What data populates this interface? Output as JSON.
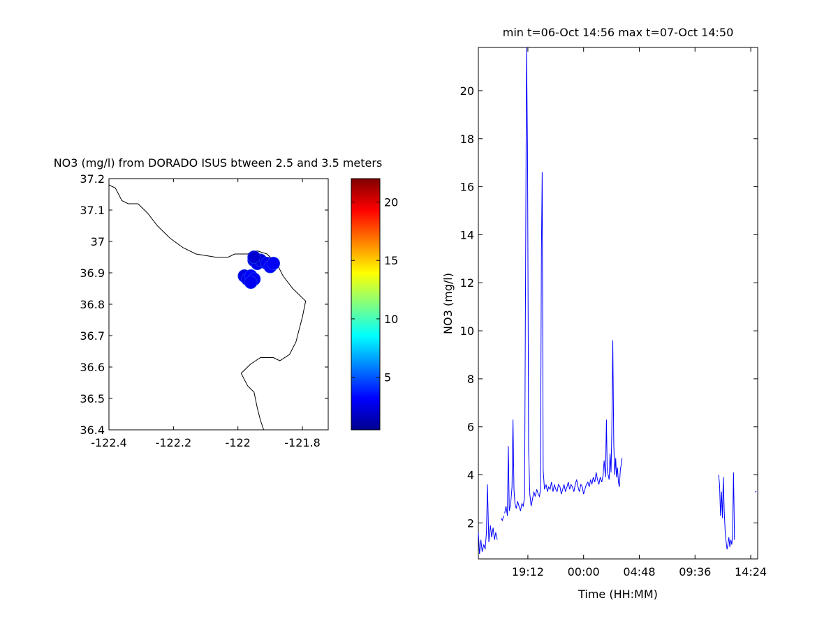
{
  "chart_data": [
    {
      "type": "scatter",
      "title": "NO3 (mg/l) from DORADO ISUS btween 2.5 and 3.5 meters",
      "xlabel": "",
      "ylabel": "",
      "xlim": [
        -122.4,
        -121.72
      ],
      "ylim": [
        36.4,
        37.2
      ],
      "x_ticks": [
        "-122.4",
        "-122.2",
        "-122",
        "-121.8"
      ],
      "y_ticks": [
        "37.2",
        "37.1",
        "37",
        "36.9",
        "36.8",
        "36.7",
        "36.6",
        "36.5",
        "36.4"
      ],
      "colorbar": {
        "range": [
          0.5,
          22
        ],
        "ticks": [
          "5",
          "10",
          "15",
          "20"
        ],
        "colormap": "jet"
      },
      "coastline": [
        [
          -122.4,
          37.18
        ],
        [
          -122.38,
          37.17
        ],
        [
          -122.37,
          37.15
        ],
        [
          -122.36,
          37.13
        ],
        [
          -122.34,
          37.12
        ],
        [
          -122.31,
          37.12
        ],
        [
          -122.28,
          37.09
        ],
        [
          -122.25,
          37.05
        ],
        [
          -122.21,
          37.01
        ],
        [
          -122.17,
          36.98
        ],
        [
          -122.13,
          36.96
        ],
        [
          -122.07,
          36.95
        ],
        [
          -122.03,
          36.95
        ],
        [
          -122.01,
          36.96
        ],
        [
          -121.97,
          36.96
        ],
        [
          -121.94,
          36.97
        ],
        [
          -121.91,
          36.96
        ],
        [
          -121.88,
          36.93
        ],
        [
          -121.86,
          36.89
        ],
        [
          -121.83,
          36.85
        ],
        [
          -121.79,
          36.81
        ],
        [
          -121.8,
          36.76
        ],
        [
          -121.81,
          36.72
        ],
        [
          -121.82,
          36.68
        ],
        [
          -121.84,
          36.64
        ],
        [
          -121.87,
          36.62
        ],
        [
          -121.89,
          36.63
        ],
        [
          -121.93,
          36.63
        ],
        [
          -121.96,
          36.61
        ],
        [
          -121.99,
          36.58
        ],
        [
          -121.97,
          36.54
        ],
        [
          -121.95,
          36.52
        ],
        [
          -121.94,
          36.47
        ],
        [
          -121.93,
          36.43
        ],
        [
          -121.92,
          36.4
        ]
      ],
      "points": [
        {
          "x": -121.95,
          "y": 36.94,
          "value": 2.5
        },
        {
          "x": -121.94,
          "y": 36.93,
          "value": 2.7
        },
        {
          "x": -121.93,
          "y": 36.94,
          "value": 2.4
        },
        {
          "x": -121.91,
          "y": 36.93,
          "value": 2.9
        },
        {
          "x": -121.9,
          "y": 36.92,
          "value": 3.1
        },
        {
          "x": -121.89,
          "y": 36.93,
          "value": 3.0
        },
        {
          "x": -121.95,
          "y": 36.95,
          "value": 2.2
        },
        {
          "x": -121.98,
          "y": 36.89,
          "value": 2.6
        },
        {
          "x": -121.97,
          "y": 36.88,
          "value": 2.8
        },
        {
          "x": -121.96,
          "y": 36.89,
          "value": 3.2
        },
        {
          "x": -121.95,
          "y": 36.88,
          "value": 3.0
        },
        {
          "x": -121.96,
          "y": 36.87,
          "value": 2.9
        }
      ]
    },
    {
      "type": "line",
      "title": "min t=06-Oct 14:56 max t=07-Oct 14:50",
      "xlabel": "Time (HH:MM)",
      "ylabel": "NO3 (mg/l)",
      "xlim": [
        "06-Oct 14:56",
        "07-Oct 15:00"
      ],
      "ylim": [
        0.5,
        21.8
      ],
      "x_ticks": [
        "19:12",
        "00:00",
        "04:48",
        "09:36",
        "14:24"
      ],
      "y_ticks": [
        "2",
        "4",
        "6",
        "8",
        "10",
        "12",
        "14",
        "16",
        "18",
        "20"
      ],
      "color": "#0000ff",
      "series": [
        {
          "segments": [
            [
              [
                "06-Oct 14:56",
                1.6
              ],
              [
                "06-Oct 15:02",
                0.7
              ],
              [
                "06-Oct 15:09",
                1.3
              ],
              [
                "06-Oct 15:16",
                0.8
              ],
              [
                "06-Oct 15:24",
                1.1
              ],
              [
                "06-Oct 15:31",
                0.9
              ],
              [
                "06-Oct 15:38",
                1.6
              ],
              [
                "06-Oct 15:43",
                3.6
              ],
              [
                "06-Oct 15:50",
                1.2
              ],
              [
                "06-Oct 15:58",
                1.9
              ],
              [
                "06-Oct 16:05",
                1.4
              ],
              [
                "06-Oct 16:12",
                1.8
              ],
              [
                "06-Oct 16:19",
                1.3
              ],
              [
                "06-Oct 16:26",
                1.6
              ],
              [
                "06-Oct 16:34",
                1.3
              ]
            ],
            [
              [
                "06-Oct 16:53",
                2.2
              ],
              [
                "06-Oct 17:00",
                2.1
              ],
              [
                "06-Oct 17:07",
                2.3
              ]
            ],
            [
              [
                "06-Oct 17:12",
                2.4
              ],
              [
                "06-Oct 17:19",
                2.7
              ],
              [
                "06-Oct 17:26",
                2.3
              ],
              [
                "06-Oct 17:31",
                5.2
              ],
              [
                "06-Oct 17:36",
                2.5
              ],
              [
                "06-Oct 17:43",
                2.8
              ],
              [
                "06-Oct 17:50",
                3.5
              ],
              [
                "06-Oct 17:55",
                6.3
              ],
              [
                "06-Oct 18:00",
                3.4
              ],
              [
                "06-Oct 18:05",
                2.8
              ],
              [
                "06-Oct 18:12",
                2.6
              ],
              [
                "06-Oct 18:19",
                2.9
              ],
              [
                "06-Oct 18:26",
                2.7
              ],
              [
                "06-Oct 18:34",
                2.5
              ],
              [
                "06-Oct 18:41",
                2.8
              ],
              [
                "06-Oct 18:48",
                2.7
              ],
              [
                "06-Oct 18:55",
                3.1
              ],
              [
                "06-Oct 19:00",
                12.2
              ],
              [
                "06-Oct 19:05",
                21.8
              ],
              [
                "06-Oct 19:10",
                17.6
              ],
              [
                "06-Oct 19:16",
                5.0
              ],
              [
                "06-Oct 19:22",
                3.2
              ],
              [
                "06-Oct 19:29",
                2.7
              ],
              [
                "06-Oct 19:36",
                3.0
              ],
              [
                "06-Oct 19:43",
                3.3
              ],
              [
                "06-Oct 19:50",
                3.1
              ],
              [
                "06-Oct 19:58",
                3.4
              ],
              [
                "06-Oct 20:05",
                3.2
              ],
              [
                "06-Oct 20:12",
                3.1
              ],
              [
                "06-Oct 20:17",
                3.4
              ],
              [
                "06-Oct 20:22",
                13.4
              ],
              [
                "06-Oct 20:26",
                16.6
              ],
              [
                "06-Oct 20:31",
                4.2
              ],
              [
                "06-Oct 20:38",
                3.4
              ],
              [
                "06-Oct 20:46",
                3.6
              ],
              [
                "06-Oct 20:53",
                3.3
              ],
              [
                "06-Oct 21:00",
                3.5
              ],
              [
                "06-Oct 21:07",
                3.4
              ],
              [
                "06-Oct 21:14",
                3.7
              ],
              [
                "06-Oct 21:22",
                3.3
              ],
              [
                "06-Oct 21:29",
                3.6
              ],
              [
                "06-Oct 21:36",
                3.4
              ],
              [
                "06-Oct 21:43",
                3.3
              ],
              [
                "06-Oct 21:50",
                3.6
              ],
              [
                "06-Oct 21:58",
                3.5
              ],
              [
                "06-Oct 22:05",
                3.2
              ],
              [
                "06-Oct 22:12",
                3.4
              ],
              [
                "06-Oct 22:19",
                3.6
              ],
              [
                "06-Oct 22:26",
                3.3
              ],
              [
                "06-Oct 22:34",
                3.5
              ],
              [
                "06-Oct 22:41",
                3.7
              ],
              [
                "06-Oct 22:48",
                3.4
              ],
              [
                "06-Oct 22:55",
                3.6
              ],
              [
                "06-Oct 23:02",
                3.5
              ],
              [
                "06-Oct 23:10",
                3.3
              ],
              [
                "06-Oct 23:17",
                3.6
              ],
              [
                "06-Oct 23:24",
                3.8
              ],
              [
                "06-Oct 23:31",
                3.5
              ],
              [
                "06-Oct 23:38",
                3.3
              ],
              [
                "06-Oct 23:46",
                3.6
              ],
              [
                "06-Oct 23:53",
                3.5
              ],
              [
                "07-Oct 00:00",
                3.2
              ],
              [
                "07-Oct 00:07",
                3.4
              ],
              [
                "07-Oct 00:14",
                3.6
              ],
              [
                "07-Oct 00:22",
                3.7
              ],
              [
                "07-Oct 00:29",
                3.5
              ],
              [
                "07-Oct 00:36",
                3.8
              ],
              [
                "07-Oct 00:43",
                3.6
              ],
              [
                "07-Oct 00:50",
                3.9
              ],
              [
                "07-Oct 00:58",
                3.7
              ],
              [
                "07-Oct 01:05",
                4.1
              ],
              [
                "07-Oct 01:12",
                3.8
              ],
              [
                "07-Oct 01:19",
                3.6
              ],
              [
                "07-Oct 01:26",
                3.9
              ],
              [
                "07-Oct 01:34",
                3.7
              ],
              [
                "07-Oct 01:41",
                4.0
              ],
              [
                "07-Oct 01:46",
                4.6
              ],
              [
                "07-Oct 01:53",
                3.9
              ],
              [
                "07-Oct 01:58",
                6.3
              ],
              [
                "07-Oct 02:02",
                4.2
              ],
              [
                "07-Oct 02:07",
                4.0
              ],
              [
                "07-Oct 02:12",
                3.8
              ],
              [
                "07-Oct 02:17",
                4.9
              ],
              [
                "07-Oct 02:22",
                4.1
              ],
              [
                "07-Oct 02:26",
                5.8
              ],
              [
                "07-Oct 02:31",
                9.6
              ],
              [
                "07-Oct 02:36",
                5.3
              ],
              [
                "07-Oct 02:41",
                4.0
              ],
              [
                "07-Oct 02:46",
                4.7
              ],
              [
                "07-Oct 02:50",
                3.9
              ],
              [
                "07-Oct 02:55",
                4.3
              ],
              [
                "07-Oct 03:00",
                3.7
              ],
              [
                "07-Oct 03:05",
                3.5
              ],
              [
                "07-Oct 03:10",
                4.2
              ],
              [
                "07-Oct 03:14",
                4.4
              ],
              [
                "07-Oct 03:19",
                4.7
              ]
            ],
            [
              [
                "07-Oct 11:38",
                4.0
              ],
              [
                "07-Oct 11:43",
                3.6
              ],
              [
                "07-Oct 11:48",
                2.3
              ],
              [
                "07-Oct 11:53",
                3.3
              ],
              [
                "07-Oct 11:58",
                2.2
              ],
              [
                "07-Oct 12:02",
                3.9
              ],
              [
                "07-Oct 12:07",
                2.5
              ],
              [
                "07-Oct 12:12",
                1.6
              ],
              [
                "07-Oct 12:17",
                1.2
              ],
              [
                "07-Oct 12:22",
                0.9
              ],
              [
                "07-Oct 12:26",
                1.1
              ],
              [
                "07-Oct 12:31",
                1.4
              ],
              [
                "07-Oct 12:36",
                1.0
              ],
              [
                "07-Oct 12:41",
                1.3
              ],
              [
                "07-Oct 12:46",
                1.1
              ],
              [
                "07-Oct 12:50",
                1.5
              ],
              [
                "07-Oct 12:55",
                4.1
              ],
              [
                "07-Oct 13:00",
                1.3
              ]
            ],
            [
              [
                "07-Oct 14:50",
                3.3
              ]
            ]
          ]
        }
      ]
    }
  ]
}
